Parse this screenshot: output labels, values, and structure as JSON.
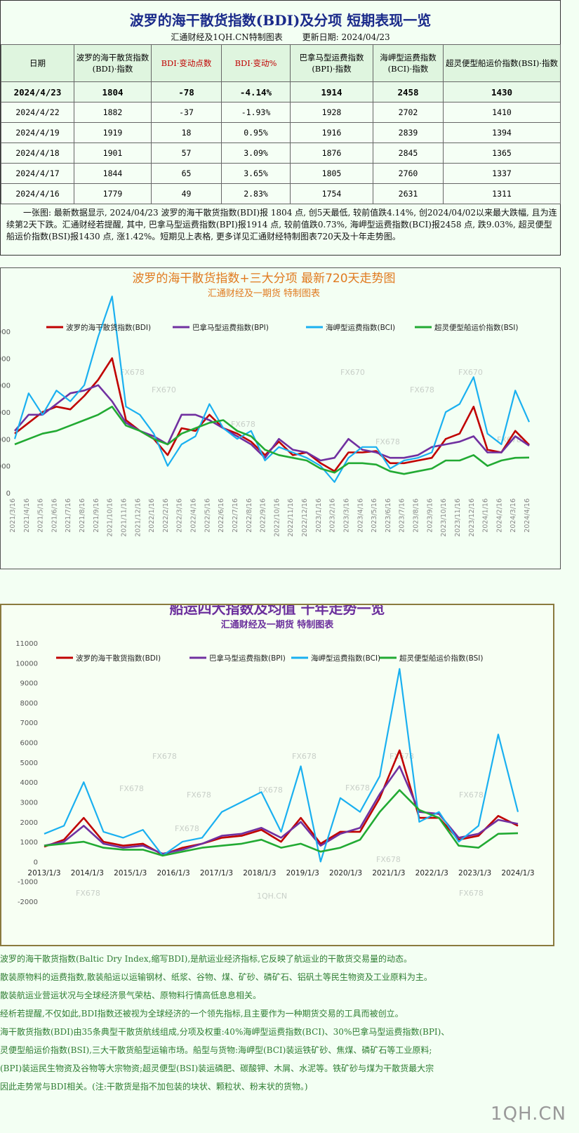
{
  "header": {
    "title": "波罗的海干散货指数(BDI)及分项 短期表现一览",
    "source": "汇通财经及1QH.CN特制图表",
    "update": "更新日期: 2024/04/23"
  },
  "table": {
    "columns": [
      "日期",
      "波罗的海干散货指数(BDI)·指数",
      "BDI·变动点数",
      "BDI·变动%",
      "巴拿马型运费指数(BPI)·指数",
      "海岬型运费指数(BCI)·指数",
      "超灵便型船运价指数(BSI)·指数"
    ],
    "rows": [
      [
        "2024/4/23",
        "1804",
        "-78",
        "-4.14%",
        "1914",
        "2458",
        "1430"
      ],
      [
        "2024/4/22",
        "1882",
        "-37",
        "-1.93%",
        "1928",
        "2702",
        "1410"
      ],
      [
        "2024/4/19",
        "1919",
        "18",
        "0.95%",
        "1916",
        "2839",
        "1394"
      ],
      [
        "2024/4/18",
        "1901",
        "57",
        "3.09%",
        "1876",
        "2845",
        "1365"
      ],
      [
        "2024/4/17",
        "1844",
        "65",
        "3.65%",
        "1805",
        "2760",
        "1337"
      ],
      [
        "2024/4/16",
        "1779",
        "49",
        "2.83%",
        "1754",
        "2631",
        "1311"
      ]
    ]
  },
  "summary": "一张图: 最新数据显示, 2024/04/23 波罗的海干散货指数(BDI)报 1804 点, 创5天最低, 较前值跌4.14%, 创2024/04/02以来最大跌幅, 且为连续第2天下跌。汇通财经若提醒, 其中, 巴拿马型运费指数(BPI)报1914 点, 较前值跌0.73%, 海岬型运费指数(BCI)报2458 点, 跌9.03%, 超灵便型船运价指数(BSI)报1430 点, 涨1.42%。短期见上表格, 更多详见汇通财经特制图表720天及十年走势图。",
  "colors": {
    "BDI": "#c00000",
    "BPI": "#7030a0",
    "BCI": "#1ab0f0",
    "BSI": "#22aa33"
  },
  "chart_data": [
    {
      "type": "line",
      "title": "波罗的海干散货指数+三大分项 最新720天走势图",
      "subtitle": "汇通财经及一期货 特制图表",
      "legend": [
        "波罗的海干散货指数(BDI)",
        "巴拿马型运费指数(BPI)",
        "海岬型运费指数(BCI)",
        "超灵便型船运价指数(BSI)"
      ],
      "legend_position": "top",
      "x": [
        "2021/3/16",
        "2021/4/16",
        "2021/5/16",
        "2021/6/16",
        "2021/7/16",
        "2021/8/16",
        "2021/9/16",
        "2021/10/16",
        "2021/11/16",
        "2021/12/16",
        "2022/1/16",
        "2022/2/16",
        "2022/3/16",
        "2022/4/16",
        "2022/5/16",
        "2022/6/16",
        "2022/7/16",
        "2022/8/16",
        "2022/9/16",
        "2022/10/16",
        "2022/11/16",
        "2022/12/16",
        "2023/1/16",
        "2023/2/16",
        "2023/3/16",
        "2023/4/16",
        "2023/5/16",
        "2023/6/16",
        "2023/7/16",
        "2023/8/16",
        "2023/9/16",
        "2023/10/16",
        "2023/11/16",
        "2023/12/16",
        "2024/1/16",
        "2024/2/16",
        "2024/3/16",
        "2024/4/16"
      ],
      "series": [
        {
          "name": "波罗的海干散货指数(BDI)",
          "values": [
            2200,
            2600,
            3000,
            3200,
            3100,
            3600,
            4200,
            5000,
            2700,
            2300,
            2000,
            1400,
            2400,
            2300,
            2900,
            2400,
            2200,
            1900,
            1400,
            1900,
            1400,
            1500,
            1100,
            800,
            1500,
            1500,
            1550,
            1100,
            1100,
            1200,
            1300,
            2000,
            2200,
            3200,
            1600,
            1500,
            2300,
            1780
          ]
        },
        {
          "name": "巴拿马型运费指数(BPI)",
          "values": [
            2300,
            2900,
            2900,
            3300,
            3700,
            3800,
            4000,
            3400,
            2600,
            2300,
            2100,
            1800,
            2900,
            2900,
            2700,
            2400,
            2100,
            1800,
            1300,
            2000,
            1600,
            1500,
            1200,
            1300,
            2000,
            1600,
            1500,
            1300,
            1300,
            1400,
            1700,
            1800,
            1900,
            2100,
            1500,
            1500,
            2100,
            1750
          ]
        },
        {
          "name": "海岬型运费指数(BCI)",
          "values": [
            2000,
            3700,
            2900,
            3800,
            3400,
            4000,
            5800,
            7300,
            3200,
            2900,
            2200,
            1000,
            1800,
            2100,
            3300,
            2400,
            2000,
            2300,
            1200,
            1700,
            1500,
            1300,
            1000,
            400,
            1300,
            1700,
            1700,
            900,
            1200,
            1300,
            1500,
            3000,
            3300,
            4300,
            2200,
            1800,
            3800,
            2630
          ]
        },
        {
          "name": "超灵便型船运价指数(BSI)",
          "values": [
            1800,
            2000,
            2200,
            2300,
            2500,
            2700,
            2900,
            3200,
            2500,
            2300,
            2000,
            1800,
            2200,
            2400,
            2600,
            2700,
            2300,
            2100,
            1600,
            1400,
            1300,
            1200,
            900,
            750,
            1100,
            1100,
            1050,
            800,
            700,
            800,
            900,
            1200,
            1200,
            1400,
            1000,
            1200,
            1300,
            1310
          ]
        }
      ],
      "ylim": [
        0,
        6000
      ]
    },
    {
      "type": "line",
      "title": "船运四大指数及均值 十年走势一览",
      "subtitle": "汇通财经及一期货 特制图表",
      "legend": [
        "波罗的海干散货指数(BDI)",
        "巴拿马型运费指数(BPI)",
        "海岬型运费指数(BCI)",
        "超灵便型船运价指数(BSI)"
      ],
      "legend_position": "top",
      "x_ticks": [
        "2013/1/3",
        "2014/1/3",
        "2015/1/3",
        "2016/1/3",
        "2017/1/3",
        "2018/1/3",
        "2019/1/3",
        "2020/1/3",
        "2021/1/3",
        "2022/1/3",
        "2023/1/3",
        "2024/1/3"
      ],
      "x": [
        "2013/1",
        "2013/7",
        "2014/1",
        "2014/7",
        "2015/1",
        "2015/7",
        "2016/1",
        "2016/7",
        "2017/1",
        "2017/7",
        "2018/1",
        "2018/7",
        "2019/1",
        "2019/7",
        "2020/1",
        "2020/7",
        "2021/1",
        "2021/7",
        "2021/10",
        "2022/1",
        "2022/7",
        "2023/1",
        "2023/7",
        "2024/1",
        "2024/4"
      ],
      "series": [
        {
          "name": "波罗的海干散货指数(BDI)",
          "values": [
            750,
            1100,
            2200,
            1000,
            800,
            900,
            350,
            700,
            900,
            1200,
            1300,
            1600,
            1000,
            2200,
            900,
            1500,
            1500,
            3200,
            5600,
            2200,
            2200,
            1100,
            1300,
            2300,
            1800
          ]
        },
        {
          "name": "巴拿马型运费指数(BPI)",
          "values": [
            800,
            1000,
            1800,
            900,
            700,
            800,
            400,
            600,
            900,
            1300,
            1400,
            1700,
            1200,
            2000,
            800,
            1400,
            1700,
            3400,
            4800,
            2500,
            2400,
            1200,
            1400,
            2100,
            1900
          ]
        },
        {
          "name": "海岬型运费指数(BCI)",
          "values": [
            1400,
            1800,
            4000,
            1500,
            1200,
            1600,
            300,
            1000,
            1200,
            2500,
            3000,
            3500,
            1500,
            4800,
            0,
            3200,
            2500,
            4300,
            9700,
            2000,
            2500,
            1000,
            1800,
            6400,
            2500
          ]
        },
        {
          "name": "超灵便型船运价指数(BSI)",
          "values": [
            800,
            900,
            1000,
            700,
            600,
            600,
            300,
            500,
            700,
            800,
            900,
            1100,
            700,
            900,
            500,
            700,
            1100,
            2500,
            3600,
            2600,
            2200,
            800,
            700,
            1400,
            1430
          ]
        }
      ],
      "ylim": [
        -2000,
        11000
      ],
      "yticks": [
        -2000,
        -1000,
        0,
        1000,
        2000,
        3000,
        4000,
        5000,
        6000,
        7000,
        8000,
        9000,
        10000,
        11000
      ]
    }
  ],
  "notes": [
    "波罗的海干散货指数(Baltic Dry Index,缩写BDI),是航运业经济指标,它反映了航运业的干散货交易量的动态。",
    "散装原物料的运费指数,散装船运以运输钢材、纸浆、谷物、煤、矿砂、磷矿石、铝矾土等民生物资及工业原料为主。",
    "散装航运业营运状况与全球经济景气荣枯、原物料行情高低息息相关。",
    "经析若提醒,不仅如此,BDI指数还被视为全球经济的一个领先指标,且主要作为一种期货交易的工具而被创立。",
    "海干散货指数(BDI)由35条典型干散货航线组成,分项及权重:40%海岬型运费指数(BCI)、30%巴拿马型运费指数(BPI)、",
    "灵便型船运价指数(BSI),三大干散货船型运输市场。船型与货物:海岬型(BCI)装运铁矿砂、焦煤、磷矿石等工业原料;",
    "(BPI)装运民生物资及谷物等大宗物资;超灵便型(BSI)装运磷肥、碳酸钾、木屑、水泥等。铁矿砂与煤为干散货最大宗",
    "因此走势常与BDI相关。(注:干散货是指不加包装的块状、颗粒状、粉末状的货物。)"
  ],
  "watermarks": [
    "FX678",
    "FX670",
    "1QH.CN"
  ],
  "brand": "1QH.CN"
}
